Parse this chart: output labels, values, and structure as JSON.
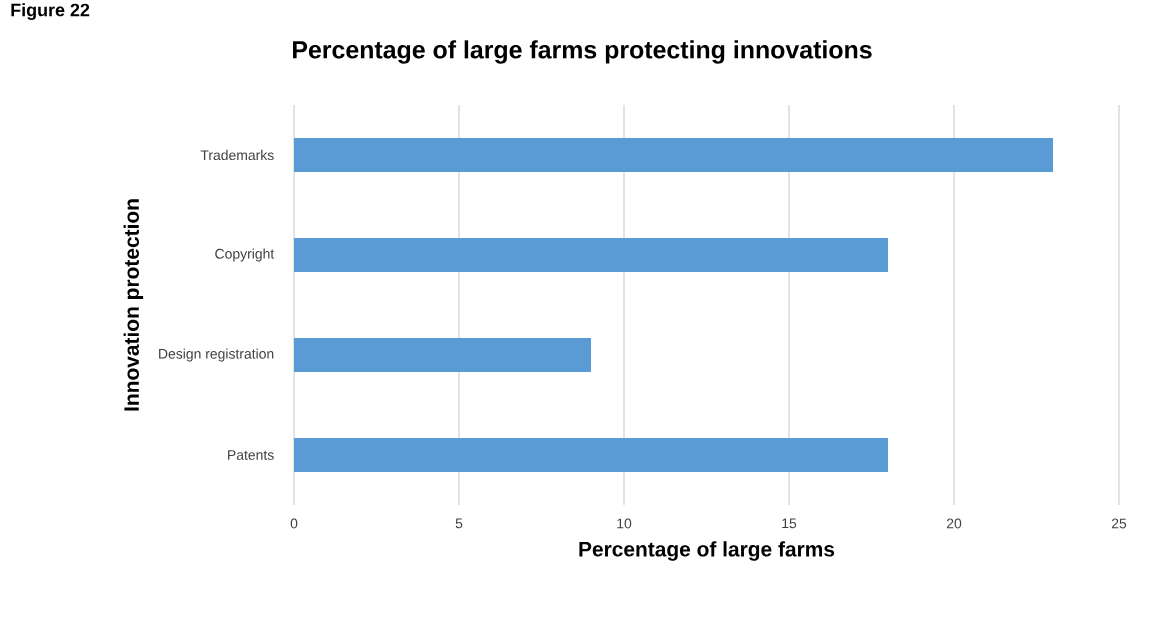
{
  "chart_data": {
    "type": "bar",
    "orientation": "horizontal",
    "title": "Percentage of large farms protecting innovations",
    "xlabel": "Percentage of large farms",
    "ylabel": "Innovation protection",
    "categories": [
      "Trademarks",
      "Copyright",
      "Design registration",
      "Patents"
    ],
    "values": [
      23,
      18,
      9,
      18
    ],
    "color": "#5b9bd5",
    "xlim": [
      0,
      25
    ],
    "xticks": [
      0,
      5,
      10,
      15,
      20,
      25
    ],
    "grid": "x",
    "annotations": [
      "Figure 22"
    ]
  }
}
